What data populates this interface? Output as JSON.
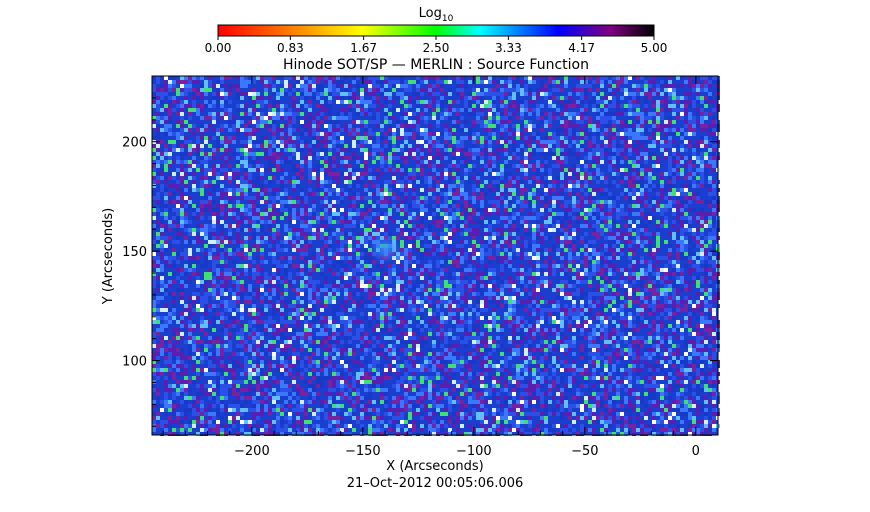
{
  "chart_data": {
    "type": "heatmap",
    "title": "Hinode SOT/SP — MERLIN : Source Function",
    "xlabel": "X (Arcseconds)",
    "ylabel": "Y (Arcseconds)",
    "timestamp": "21–Oct–2012 00:05:06.006",
    "xlim": [
      -245,
      10
    ],
    "ylim": [
      66,
      230
    ],
    "x_ticks": [
      -200,
      -150,
      -100,
      -50,
      0
    ],
    "x_tick_labels": [
      "−200",
      "−150",
      "−100",
      "−50",
      "0"
    ],
    "y_ticks": [
      100,
      150,
      200
    ],
    "y_tick_labels": [
      "100",
      "150",
      "200"
    ],
    "colorbar": {
      "label_base": "Log",
      "label_sub": "10",
      "range": [
        0,
        5
      ],
      "tick_values": [
        0.0,
        0.83,
        1.67,
        2.5,
        3.33,
        4.17,
        5.0
      ],
      "tick_labels": [
        "0.00",
        "0.83",
        "1.67",
        "2.50",
        "3.33",
        "4.17",
        "5.00"
      ],
      "colors": [
        "#ff0000",
        "#ff8000",
        "#ffff00",
        "#00ff00",
        "#00ffff",
        "#0000ff",
        "#800080",
        "#000000"
      ]
    },
    "dominant_value_range": [
      4.0,
      4.3
    ],
    "feature": {
      "x": -140,
      "y": 151,
      "note": "diffuse lighter blob"
    }
  }
}
